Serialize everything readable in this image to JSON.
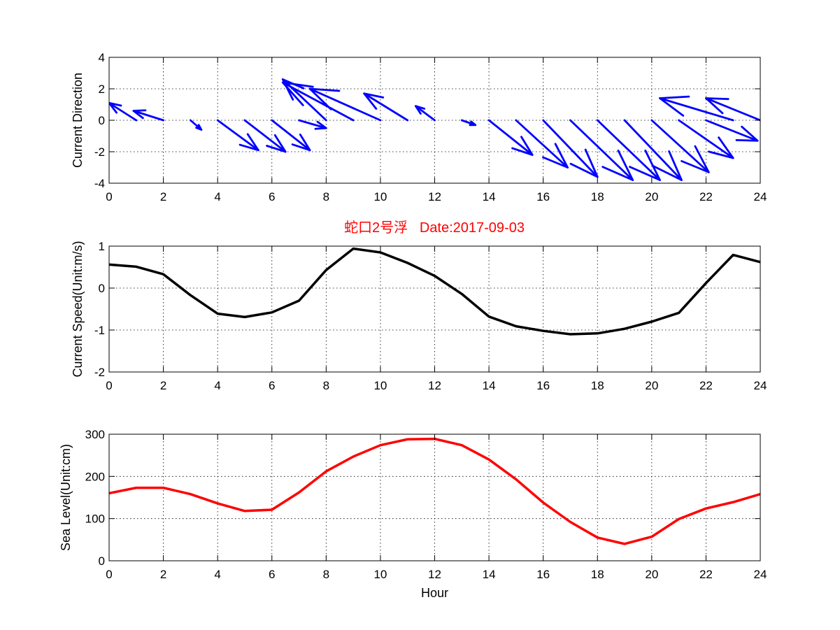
{
  "figure": {
    "title": "蛇口2号浮   Date:2017-09-03",
    "title_color": "#ff0000"
  },
  "chart_data": [
    {
      "type": "quiver",
      "ylabel": "Current Direction",
      "xlabel": "",
      "xlim": [
        0,
        24
      ],
      "ylim": [
        -4,
        4
      ],
      "xticks": [
        0,
        2,
        4,
        6,
        8,
        10,
        12,
        14,
        16,
        18,
        20,
        22,
        24
      ],
      "yticks": [
        -4,
        -2,
        0,
        2,
        4
      ],
      "grid": true,
      "color": "#0000ff",
      "vectors": [
        {
          "x": 1,
          "y": 0,
          "u": -1.0,
          "v": 1.1
        },
        {
          "x": 2,
          "y": 0,
          "u": -1.1,
          "v": 0.6
        },
        {
          "x": 3,
          "y": 0,
          "u": 0.4,
          "v": -0.6
        },
        {
          "x": 4,
          "y": 0,
          "u": 1.5,
          "v": -1.9
        },
        {
          "x": 5,
          "y": 0,
          "u": 1.5,
          "v": -2.0
        },
        {
          "x": 6,
          "y": 0,
          "u": 1.4,
          "v": -1.9
        },
        {
          "x": 7,
          "y": 0,
          "u": 1.0,
          "v": -0.5
        },
        {
          "x": 8,
          "y": 0,
          "u": -1.6,
          "v": 2.6
        },
        {
          "x": 9,
          "y": 0,
          "u": -2.6,
          "v": 2.4
        },
        {
          "x": 10,
          "y": 0,
          "u": -2.6,
          "v": 2.0
        },
        {
          "x": 11,
          "y": 0,
          "u": -1.6,
          "v": 1.7
        },
        {
          "x": 12,
          "y": 0,
          "u": -0.7,
          "v": 0.9
        },
        {
          "x": 13,
          "y": 0,
          "u": 0.5,
          "v": -0.3
        },
        {
          "x": 14,
          "y": 0,
          "u": 1.6,
          "v": -2.2
        },
        {
          "x": 15,
          "y": 0,
          "u": 1.9,
          "v": -3.0
        },
        {
          "x": 16,
          "y": 0,
          "u": 2.0,
          "v": -3.6
        },
        {
          "x": 17,
          "y": 0,
          "u": 2.3,
          "v": -3.8
        },
        {
          "x": 18,
          "y": 0,
          "u": 2.3,
          "v": -3.8
        },
        {
          "x": 19,
          "y": 0,
          "u": 2.1,
          "v": -3.8
        },
        {
          "x": 20,
          "y": 0,
          "u": 2.1,
          "v": -3.3
        },
        {
          "x": 21,
          "y": 0,
          "u": 2.0,
          "v": -2.4
        },
        {
          "x": 22,
          "y": 0,
          "u": 1.9,
          "v": -1.3
        },
        {
          "x": 23,
          "y": 0,
          "u": -2.7,
          "v": 1.4
        },
        {
          "x": 24,
          "y": 0,
          "u": -2.0,
          "v": 1.4
        }
      ]
    },
    {
      "type": "line",
      "ylabel": "Current Speed(Unit:m/s)",
      "xlabel": "",
      "xlim": [
        0,
        24
      ],
      "ylim": [
        -2,
        1
      ],
      "xticks": [
        0,
        2,
        4,
        6,
        8,
        10,
        12,
        14,
        16,
        18,
        20,
        22,
        24
      ],
      "yticks": [
        -2,
        -1,
        0,
        1
      ],
      "grid": true,
      "color": "#000000",
      "x": [
        0,
        1,
        2,
        3,
        4,
        5,
        6,
        7,
        8,
        9,
        10,
        11,
        12,
        13,
        14,
        15,
        16,
        17,
        18,
        19,
        20,
        21,
        22,
        23,
        24
      ],
      "y": [
        0.56,
        0.51,
        0.33,
        -0.17,
        -0.61,
        -0.69,
        -0.58,
        -0.3,
        0.43,
        0.94,
        0.85,
        0.6,
        0.29,
        -0.14,
        -0.68,
        -0.91,
        -1.02,
        -1.1,
        -1.08,
        -0.97,
        -0.8,
        -0.59,
        0.12,
        0.79,
        0.62
      ]
    },
    {
      "type": "line",
      "ylabel": "Sea Level(Unit:cm)",
      "xlabel": "Hour",
      "xlim": [
        0,
        24
      ],
      "ylim": [
        0,
        300
      ],
      "xticks": [
        0,
        2,
        4,
        6,
        8,
        10,
        12,
        14,
        16,
        18,
        20,
        22,
        24
      ],
      "yticks": [
        0,
        100,
        200,
        300
      ],
      "grid": true,
      "color": "#ff0000",
      "x": [
        0,
        1,
        2,
        3,
        4,
        5,
        6,
        7,
        8,
        9,
        10,
        11,
        12,
        13,
        14,
        15,
        16,
        17,
        18,
        19,
        20,
        21,
        22,
        23,
        24
      ],
      "y": [
        160,
        173,
        173,
        158,
        136,
        118,
        121,
        162,
        212,
        247,
        274,
        288,
        289,
        274,
        240,
        193,
        138,
        92,
        55,
        40,
        57,
        99,
        124,
        139,
        158
      ]
    }
  ]
}
